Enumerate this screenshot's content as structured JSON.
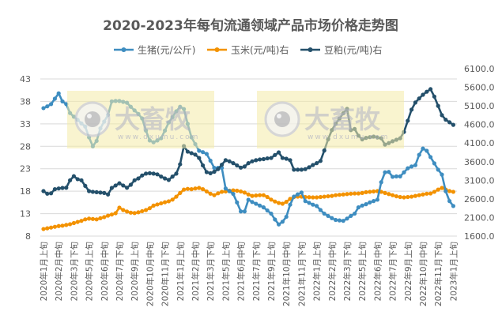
{
  "chart_data": {
    "type": "line",
    "title": "2020-2023年每旬流通领域产品市场价格走势图",
    "x_tick_labels": [
      "2020年1月上旬",
      "2020年2月中旬",
      "2020年3月下旬",
      "2020年5月上旬",
      "2020年6月中旬",
      "2020年7月下旬",
      "2020年9月上旬",
      "2020年10月中旬",
      "2020年11月下旬",
      "2021年1月上旬",
      "2021年2月中旬",
      "2021年3月下旬",
      "2021年5月上旬",
      "2021年6月中旬",
      "2021年7月下旬",
      "2021年9月上旬",
      "2021年10月中旬",
      "2021年11月下旬",
      "2022年1月上旬",
      "2022年2月中旬",
      "2022年3月下旬",
      "2022年5月上旬",
      "2022年6月中旬",
      "2022年7月下旬",
      "2022年9月上旬",
      "2022年10月中旬",
      "2022年11月下旬",
      "2023年1月上旬"
    ],
    "x_tick_every": 4,
    "left_axis": {
      "ylim": [
        8,
        43
      ],
      "ticks": [
        "8",
        "13",
        "18",
        "23",
        "28",
        "33",
        "38",
        "43"
      ]
    },
    "right_axis": {
      "ylim": [
        1600,
        6100
      ],
      "ticks": [
        "1600.0",
        "2100.0",
        "2600.0",
        "3100.0",
        "3600.0",
        "4100.0",
        "4600.0",
        "5100.0",
        "5600.0",
        "6100.0"
      ]
    },
    "grid": true,
    "legend_position": "top",
    "series": [
      {
        "name": "生猪(元/公斤)",
        "axis": "left",
        "color": "#3E8DC0",
        "values": [
          36.5,
          36.9,
          37.4,
          38.6,
          39.8,
          38.0,
          37.4,
          35.4,
          34.6,
          33.9,
          33.1,
          32.4,
          30.0,
          28.0,
          29.2,
          32.0,
          33.5,
          35.0,
          38.0,
          38.1,
          38.1,
          37.9,
          37.7,
          36.8,
          36.0,
          35.2,
          34.2,
          31.5,
          29.3,
          28.9,
          29.3,
          29.8,
          31.5,
          33.3,
          34.5,
          35.8,
          36.8,
          36.3,
          33.0,
          30.0,
          28.5,
          27.0,
          26.7,
          26.3,
          24.8,
          23.2,
          23.2,
          23.2,
          18.6,
          18.0,
          17.4,
          15.5,
          13.5,
          13.5,
          16.1,
          15.6,
          15.2,
          14.8,
          14.4,
          13.7,
          13.0,
          11.7,
          10.6,
          11.2,
          12.3,
          15.0,
          16.8,
          17.3,
          17.7,
          15.8,
          15.4,
          15.0,
          14.7,
          13.8,
          13.0,
          12.5,
          12.0,
          11.6,
          11.5,
          11.4,
          11.9,
          12.5,
          13.0,
          14.4,
          14.8,
          15.1,
          15.5,
          15.8,
          16.1,
          20.0,
          22.2,
          22.3,
          21.2,
          21.3,
          21.3,
          22.2,
          23.1,
          23.5,
          23.8,
          26.1,
          27.5,
          27.0,
          25.6,
          24.2,
          22.8,
          21.7,
          18.0,
          15.8,
          14.7
        ]
      },
      {
        "name": "玉米(元/吨)右",
        "axis": "right",
        "color": "#F39200",
        "values": [
          1790,
          1810,
          1830,
          1850,
          1870,
          1880,
          1900,
          1920,
          1950,
          1980,
          2010,
          2050,
          2070,
          2060,
          2050,
          2080,
          2110,
          2150,
          2180,
          2215,
          2365,
          2300,
          2260,
          2230,
          2220,
          2240,
          2270,
          2300,
          2350,
          2420,
          2450,
          2480,
          2510,
          2535,
          2580,
          2660,
          2760,
          2850,
          2870,
          2860,
          2880,
          2895,
          2860,
          2800,
          2740,
          2700,
          2750,
          2790,
          2800,
          2820,
          2830,
          2820,
          2800,
          2770,
          2720,
          2680,
          2690,
          2700,
          2700,
          2650,
          2580,
          2530,
          2490,
          2470,
          2520,
          2600,
          2650,
          2660,
          2660,
          2650,
          2645,
          2640,
          2640,
          2650,
          2660,
          2670,
          2680,
          2700,
          2710,
          2720,
          2730,
          2740,
          2745,
          2745,
          2760,
          2780,
          2790,
          2800,
          2810,
          2790,
          2760,
          2730,
          2700,
          2670,
          2650,
          2640,
          2650,
          2660,
          2680,
          2700,
          2720,
          2740,
          2745,
          2790,
          2850,
          2895,
          2850,
          2810,
          2790
        ]
      },
      {
        "name": "豆粕(元/吨)右",
        "axis": "right",
        "color": "#24506B",
        "values": [
          2810,
          2740,
          2750,
          2860,
          2880,
          2895,
          2900,
          3100,
          3210,
          3130,
          3100,
          2950,
          2810,
          2790,
          2780,
          2770,
          2760,
          2720,
          2895,
          2960,
          3020,
          2960,
          2900,
          2980,
          3100,
          3150,
          3230,
          3280,
          3290,
          3280,
          3260,
          3200,
          3150,
          3110,
          3200,
          3280,
          3530,
          4020,
          3870,
          3830,
          3790,
          3700,
          3500,
          3320,
          3290,
          3330,
          3400,
          3520,
          3640,
          3610,
          3560,
          3500,
          3440,
          3470,
          3560,
          3610,
          3640,
          3660,
          3670,
          3690,
          3700,
          3780,
          3850,
          3700,
          3680,
          3640,
          3385,
          3385,
          3385,
          3400,
          3450,
          3510,
          3560,
          3620,
          3900,
          4200,
          4450,
          4620,
          4760,
          4900,
          5020,
          4450,
          4480,
          4300,
          4200,
          4240,
          4260,
          4275,
          4250,
          4230,
          4060,
          4100,
          4150,
          4190,
          4230,
          4400,
          4700,
          5000,
          5190,
          5300,
          5400,
          5480,
          5550,
          5350,
          5100,
          4850,
          4730,
          4660,
          4590
        ]
      }
    ]
  },
  "watermark": {
    "logo_text": "大畜牧",
    "url_text": "www.dxumu.com",
    "count": 2
  }
}
